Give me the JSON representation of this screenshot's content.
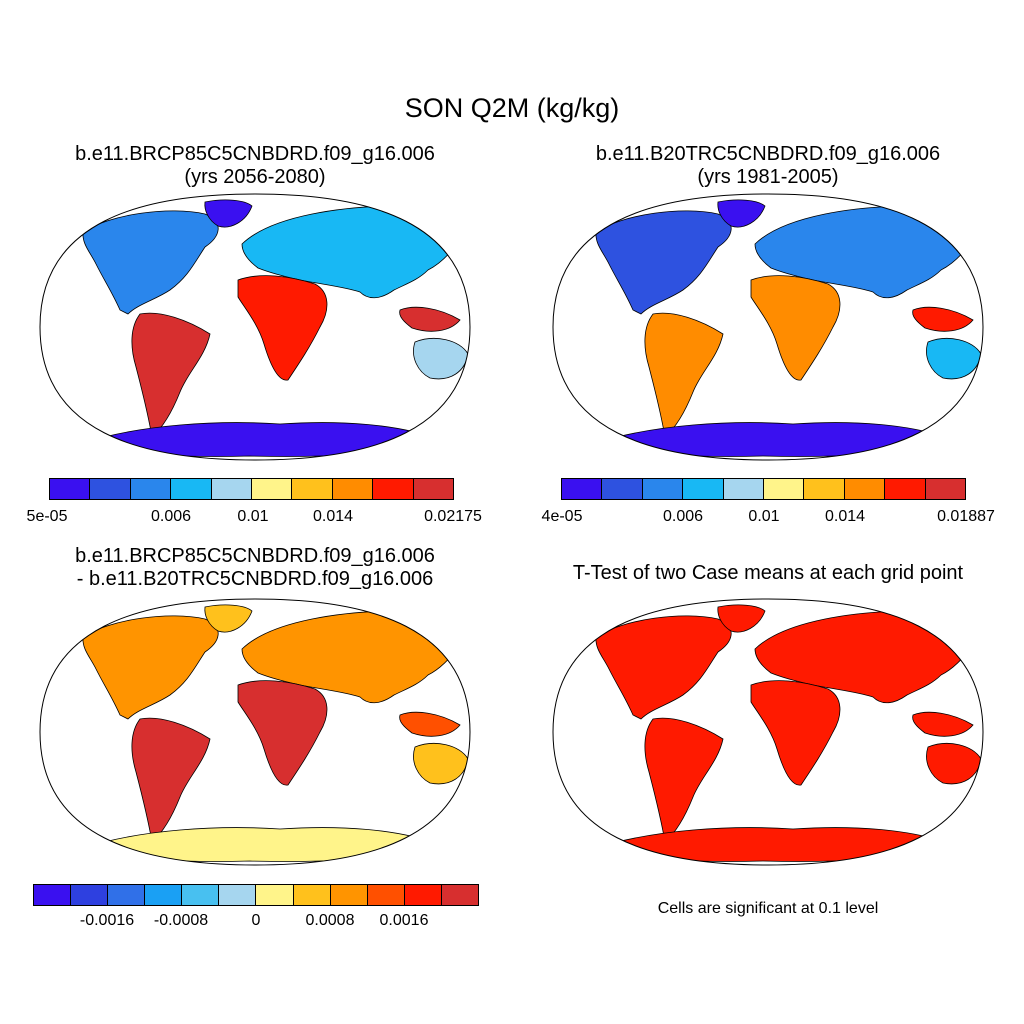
{
  "title": "SON Q2M (kg/kg)",
  "panels": [
    {
      "title_line1": "b.e11.BRCP85C5CNBDRD.f09_g16.006",
      "title_line2": "(yrs 2056-2080)"
    },
    {
      "title_line1": "b.e11.B20TRC5CNBDRD.f09_g16.006",
      "title_line2": "(yrs 1981-2005)"
    },
    {
      "title_line1": "b.e11.BRCP85C5CNBDRD.f09_g16.006",
      "title_line2": "- b.e11.B20TRC5CNBDRD.f09_g16.006"
    },
    {
      "title_line1": "T-Test of two Case means at each grid point",
      "title_line2": ""
    }
  ],
  "colorbars": {
    "case1": {
      "colors": [
        "#3a10f0",
        "#2e52e0",
        "#2a86ec",
        "#18b8f4",
        "#a6d6ef",
        "#fff48a",
        "#ffc11c",
        "#ff8c00",
        "#ff1a00",
        "#d72f2f"
      ],
      "labels": [
        "5e-05",
        "0.006",
        "0.01",
        "0.014",
        "0.02175"
      ]
    },
    "case2": {
      "colors": [
        "#3a10f0",
        "#2e52e0",
        "#2a86ec",
        "#18b8f4",
        "#a6d6ef",
        "#fff48a",
        "#ffc11c",
        "#ff8c00",
        "#ff1a00",
        "#d72f2f"
      ],
      "labels": [
        "4e-05",
        "0.006",
        "0.01",
        "0.014",
        "0.01887"
      ]
    },
    "diff": {
      "colors": [
        "#3a10f0",
        "#2e40e0",
        "#3070e8",
        "#1aa0f4",
        "#48c0f0",
        "#a6d6ef",
        "#fff48a",
        "#ffc11c",
        "#ff9400",
        "#ff5000",
        "#ff1a00",
        "#d72f2f"
      ],
      "labels": [
        "-0.0016",
        "-0.0008",
        "0",
        "0.0008",
        "0.0016"
      ]
    }
  },
  "ttest_note": "Cells are significant at 0.1 level"
}
